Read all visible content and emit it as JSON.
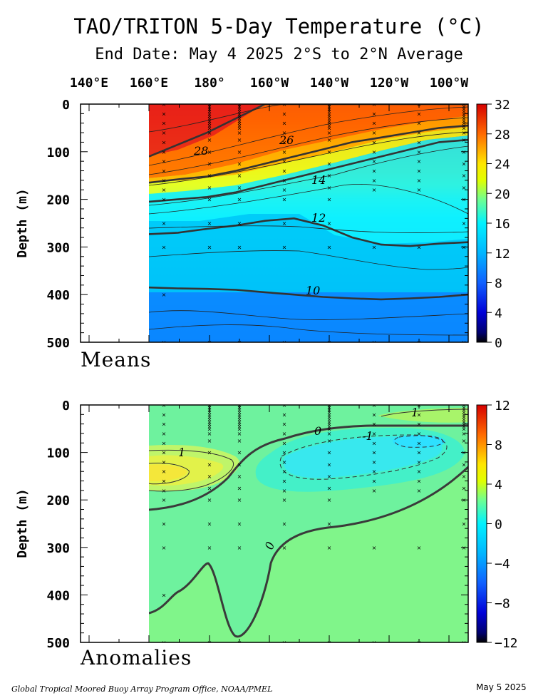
{
  "title": "TAO/TRITON 5-Day Temperature (°C)",
  "subtitle": "End Date: May 4 2025  2°S to 2°N Average",
  "footer_left": "Global Tropical Moored Buoy Array Program Office, NOAA/PMEL",
  "footer_right": "May  5 2025",
  "chart_data": [
    {
      "type": "heatmap",
      "name": "Means",
      "x_tick_labels": [
        "140°E",
        "160°E",
        "180°",
        "160°W",
        "140°W",
        "120°W",
        "100°W"
      ],
      "ylabel": "Depth (m)",
      "y_ticks": [
        0,
        100,
        200,
        300,
        400,
        500
      ],
      "ylim": [
        0,
        500
      ],
      "colorbar_ticks": [
        0,
        4,
        8,
        12,
        16,
        20,
        24,
        28,
        32
      ],
      "colorbar_range": [
        0,
        32
      ],
      "contour_labels": [
        "28",
        "26",
        "14",
        "12",
        "10"
      ],
      "isotherms": [
        {
          "value": 28,
          "depths": [
            110,
            85,
            60,
            30,
            0,
            0,
            0,
            0,
            0,
            0,
            0,
            0
          ]
        },
        {
          "value": 20,
          "depths": [
            165,
            158,
            152,
            140,
            125,
            110,
            95,
            80,
            70,
            60,
            50,
            45
          ]
        },
        {
          "value": 14,
          "depths": [
            205,
            200,
            195,
            185,
            170,
            155,
            140,
            125,
            110,
            95,
            80,
            75
          ]
        },
        {
          "value": 12,
          "depths": [
            273,
            270,
            262,
            255,
            245,
            240,
            255,
            280,
            295,
            298,
            293,
            290
          ]
        },
        {
          "value": 10,
          "depths": [
            385,
            387,
            388,
            390,
            395,
            400,
            405,
            408,
            410,
            408,
            405,
            400
          ]
        }
      ]
    },
    {
      "type": "heatmap",
      "name": "Anomalies",
      "x_tick_labels": [
        "140°E",
        "160°E",
        "180°",
        "160°W",
        "140°W",
        "120°W",
        "100°W"
      ],
      "ylabel": "Depth (m)",
      "y_ticks": [
        0,
        100,
        200,
        300,
        400,
        500
      ],
      "ylim": [
        0,
        500
      ],
      "colorbar_ticks": [
        -12,
        -8,
        -4,
        0,
        4,
        8,
        12
      ],
      "colorbar_range": [
        -12,
        12
      ],
      "contour_labels": [
        "0",
        "1",
        "-1",
        "1",
        "0"
      ],
      "features": [
        {
          "sign": "positive",
          "label": "1",
          "center_lon": 162,
          "center_depth": 150
        },
        {
          "sign": "negative",
          "label": "-1",
          "center_lon": 220,
          "center_depth": 110
        },
        {
          "sign": "positive",
          "label": "1",
          "center_lon": 260,
          "center_depth": 20
        }
      ]
    }
  ]
}
